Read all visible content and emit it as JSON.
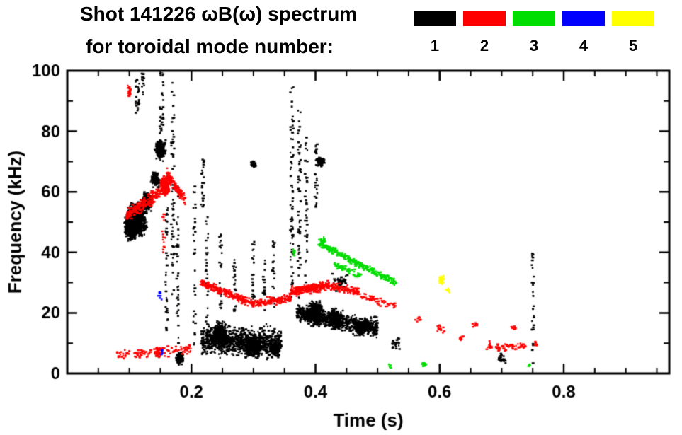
{
  "chart_data": {
    "type": "scatter",
    "title": "Shot 141226 ωB(ω) spectrum",
    "subtitle": "for toroidal mode number:",
    "xlabel": "Time (s)",
    "ylabel": "Frequency (kHz)",
    "xlim": [
      0.0,
      0.97
    ],
    "ylim": [
      0,
      100
    ],
    "xticks_major": [
      0.2,
      0.4,
      0.6,
      0.8
    ],
    "xtick_labels": [
      "0.2",
      "0.4",
      "0.6",
      "0.8"
    ],
    "yticks_major": [
      0,
      20,
      40,
      60,
      80,
      100
    ],
    "ytick_labels": [
      "0",
      "20",
      "40",
      "60",
      "80",
      "100"
    ],
    "x_minor_step": 0.05,
    "y_minor_step": 10,
    "grid": false,
    "background": "#ffffff",
    "axis_color": "#000000",
    "legend_position": "top-right",
    "legend": {
      "items": [
        {
          "label": "1",
          "color": "#000000"
        },
        {
          "label": "2",
          "color": "#ff0000"
        },
        {
          "label": "3",
          "color": "#00dd00"
        },
        {
          "label": "4",
          "color": "#0000ff"
        },
        {
          "label": "5",
          "color": "#ffff00"
        }
      ]
    },
    "series": [
      {
        "name": "1",
        "color": "#000000",
        "clusters": [
          {
            "type": "blob",
            "t": 0.112,
            "f": 51,
            "dt": 0.02,
            "df": 6.5,
            "n": 900
          },
          {
            "type": "blob",
            "t": 0.103,
            "f": 48,
            "dt": 0.012,
            "df": 4.5,
            "n": 450
          },
          {
            "type": "blob",
            "t": 0.128,
            "f": 57,
            "dt": 0.01,
            "df": 4,
            "n": 250
          },
          {
            "type": "blob",
            "t": 0.142,
            "f": 64,
            "dt": 0.008,
            "df": 3.5,
            "n": 140
          },
          {
            "type": "blob",
            "t": 0.15,
            "f": 74,
            "dt": 0.011,
            "df": 4,
            "n": 200
          },
          {
            "type": "vline",
            "t": 0.113,
            "f0": 86,
            "f1": 100,
            "dt": 0.003,
            "n": 30
          },
          {
            "type": "vline",
            "t": 0.122,
            "f0": 92,
            "f1": 100,
            "dt": 0.002,
            "n": 15
          },
          {
            "type": "vline",
            "t": 0.152,
            "f0": 78,
            "f1": 100,
            "dt": 0.003,
            "n": 35
          },
          {
            "type": "vline",
            "t": 0.16,
            "f0": 12,
            "f1": 55,
            "dt": 0.002,
            "n": 40
          },
          {
            "type": "vline",
            "t": 0.17,
            "f0": 25,
            "f1": 96,
            "dt": 0.0025,
            "n": 60
          },
          {
            "type": "vline",
            "t": 0.178,
            "f0": 3,
            "f1": 62,
            "dt": 0.002,
            "n": 45
          },
          {
            "type": "blob",
            "t": 0.182,
            "f": 5,
            "dt": 0.008,
            "df": 2.5,
            "n": 90
          },
          {
            "type": "vline",
            "t": 0.205,
            "f0": 8,
            "f1": 62,
            "dt": 0.002,
            "n": 35
          },
          {
            "type": "vline",
            "t": 0.218,
            "f0": 55,
            "f1": 73,
            "dt": 0.0025,
            "n": 25
          },
          {
            "type": "vline",
            "t": 0.225,
            "f0": 12,
            "f1": 52,
            "dt": 0.002,
            "n": 28
          },
          {
            "type": "band",
            "t0": 0.215,
            "f0": 11,
            "t1": 0.345,
            "f1": 10,
            "df": 6.5,
            "n": 900
          },
          {
            "type": "blob",
            "t": 0.245,
            "f": 13,
            "dt": 0.014,
            "df": 5,
            "n": 350
          },
          {
            "type": "blob",
            "t": 0.3,
            "f": 9,
            "dt": 0.02,
            "df": 4.5,
            "n": 350
          },
          {
            "type": "blob",
            "t": 0.335,
            "f": 8,
            "dt": 0.01,
            "df": 3.5,
            "n": 150
          },
          {
            "type": "vline",
            "t": 0.247,
            "f0": 20,
            "f1": 46,
            "dt": 0.002,
            "n": 28
          },
          {
            "type": "vline",
            "t": 0.27,
            "f0": 20,
            "f1": 41,
            "dt": 0.002,
            "n": 22
          },
          {
            "type": "vline",
            "t": 0.3,
            "f0": 22,
            "f1": 46,
            "dt": 0.002,
            "n": 26
          },
          {
            "type": "vline",
            "t": 0.317,
            "f0": 20,
            "f1": 38,
            "dt": 0.002,
            "n": 18
          },
          {
            "type": "vline",
            "t": 0.332,
            "f0": 20,
            "f1": 44,
            "dt": 0.002,
            "n": 22
          },
          {
            "type": "blob",
            "t": 0.3,
            "f": 69,
            "dt": 0.006,
            "df": 1.5,
            "n": 35
          },
          {
            "type": "vline",
            "t": 0.362,
            "f0": 25,
            "f1": 95,
            "dt": 0.0025,
            "n": 70
          },
          {
            "type": "vline",
            "t": 0.374,
            "f0": 20,
            "f1": 88,
            "dt": 0.0025,
            "n": 60
          },
          {
            "type": "vline",
            "t": 0.385,
            "f0": 28,
            "f1": 78,
            "dt": 0.002,
            "n": 40
          },
          {
            "type": "vline",
            "t": 0.401,
            "f0": 55,
            "f1": 76,
            "dt": 0.002,
            "n": 28
          },
          {
            "type": "blob",
            "t": 0.408,
            "f": 70,
            "dt": 0.009,
            "df": 2,
            "n": 90
          },
          {
            "type": "band",
            "t0": 0.37,
            "f0": 20,
            "t1": 0.5,
            "f1": 15,
            "df": 4,
            "n": 750
          },
          {
            "type": "blob",
            "t": 0.4,
            "f": 20,
            "dt": 0.014,
            "df": 5,
            "n": 350
          },
          {
            "type": "blob",
            "t": 0.43,
            "f": 18,
            "dt": 0.012,
            "df": 4,
            "n": 250
          },
          {
            "type": "blob",
            "t": 0.475,
            "f": 15,
            "dt": 0.014,
            "df": 3,
            "n": 220
          },
          {
            "type": "blob",
            "t": 0.44,
            "f": 30,
            "dt": 0.015,
            "df": 4,
            "n": 45
          },
          {
            "type": "blob",
            "t": 0.53,
            "f": 10,
            "dt": 0.01,
            "df": 3,
            "n": 20
          },
          {
            "type": "blob",
            "t": 0.7,
            "f": 5,
            "dt": 0.008,
            "df": 2.5,
            "n": 25
          },
          {
            "type": "vline",
            "t": 0.75,
            "f0": 3,
            "f1": 40,
            "dt": 0.002,
            "n": 32
          }
        ]
      },
      {
        "name": "2",
        "color": "#ff0000",
        "clusters": [
          {
            "type": "band",
            "t0": 0.095,
            "f0": 52,
            "t1": 0.15,
            "f1": 60,
            "df": 3,
            "n": 220
          },
          {
            "type": "blob",
            "t": 0.158,
            "f": 62,
            "dt": 0.01,
            "df": 4,
            "n": 220
          },
          {
            "type": "band",
            "t0": 0.16,
            "f0": 66,
            "t1": 0.19,
            "f1": 57,
            "df": 2.5,
            "n": 110
          },
          {
            "type": "vline",
            "t": 0.155,
            "f0": 40,
            "f1": 53,
            "dt": 0.002,
            "n": 15
          },
          {
            "type": "blob",
            "t": 0.1,
            "f": 93,
            "dt": 0.004,
            "df": 2.5,
            "n": 18
          },
          {
            "type": "band",
            "t0": 0.08,
            "f0": 6,
            "t1": 0.2,
            "f1": 8,
            "df": 2.2,
            "n": 110
          },
          {
            "type": "blob",
            "t": 0.145,
            "f": 7,
            "dt": 0.008,
            "df": 2,
            "n": 60
          },
          {
            "type": "band",
            "t0": 0.215,
            "f0": 30,
            "t1": 0.3,
            "f1": 23,
            "df": 1.8,
            "n": 260
          },
          {
            "type": "band",
            "t0": 0.3,
            "f0": 23,
            "t1": 0.36,
            "f1": 25,
            "df": 1.8,
            "n": 150
          },
          {
            "type": "band",
            "t0": 0.36,
            "f0": 27,
            "t1": 0.42,
            "f1": 29,
            "df": 2.2,
            "n": 260
          },
          {
            "type": "band",
            "t0": 0.42,
            "f0": 29,
            "t1": 0.47,
            "f1": 27,
            "df": 1.8,
            "n": 120
          },
          {
            "type": "band",
            "t0": 0.47,
            "f0": 26,
            "t1": 0.53,
            "f1": 22,
            "df": 1.8,
            "n": 55
          },
          {
            "type": "blob",
            "t": 0.565,
            "f": 18,
            "dt": 0.006,
            "df": 1.5,
            "n": 10
          },
          {
            "type": "blob",
            "t": 0.6,
            "f": 15,
            "dt": 0.008,
            "df": 2,
            "n": 14
          },
          {
            "type": "blob",
            "t": 0.635,
            "f": 12,
            "dt": 0.006,
            "df": 1.5,
            "n": 10
          },
          {
            "type": "blob",
            "t": 0.657,
            "f": 16,
            "dt": 0.005,
            "df": 1.5,
            "n": 8
          },
          {
            "type": "blob",
            "t": 0.68,
            "f": 9,
            "dt": 0.008,
            "df": 2,
            "n": 12
          },
          {
            "type": "band",
            "t0": 0.69,
            "f0": 9,
            "t1": 0.74,
            "f1": 9,
            "df": 2,
            "n": 60
          },
          {
            "type": "blob",
            "t": 0.72,
            "f": 15,
            "dt": 0.005,
            "df": 1.5,
            "n": 10
          },
          {
            "type": "blob",
            "t": 0.755,
            "f": 10,
            "dt": 0.004,
            "df": 1.5,
            "n": 8
          }
        ]
      },
      {
        "name": "3",
        "color": "#00dd00",
        "clusters": [
          {
            "type": "band",
            "t0": 0.405,
            "f0": 43,
            "t1": 0.53,
            "f1": 30,
            "df": 1.6,
            "n": 280
          },
          {
            "type": "band",
            "t0": 0.43,
            "f0": 36,
            "t1": 0.475,
            "f1": 32,
            "df": 1.4,
            "n": 60
          },
          {
            "type": "blob",
            "t": 0.412,
            "f": 44,
            "dt": 0.005,
            "df": 1.5,
            "n": 20
          },
          {
            "type": "blob",
            "t": 0.365,
            "f": 40,
            "dt": 0.004,
            "df": 1.5,
            "n": 10
          },
          {
            "type": "blob",
            "t": 0.575,
            "f": 3,
            "dt": 0.006,
            "df": 1.2,
            "n": 14
          },
          {
            "type": "blob",
            "t": 0.52,
            "f": 2.5,
            "dt": 0.003,
            "df": 1,
            "n": 6
          },
          {
            "type": "blob",
            "t": 0.745,
            "f": 2.5,
            "dt": 0.003,
            "df": 1,
            "n": 6
          }
        ]
      },
      {
        "name": "4",
        "color": "#0000ff",
        "clusters": [
          {
            "type": "blob",
            "t": 0.149,
            "f": 26,
            "dt": 0.004,
            "df": 2,
            "n": 8
          },
          {
            "type": "blob",
            "t": 0.153,
            "f": 7,
            "dt": 0.003,
            "df": 1.5,
            "n": 5
          }
        ]
      },
      {
        "name": "5",
        "color": "#ffff00",
        "clusters": [
          {
            "type": "blob",
            "t": 0.603,
            "f": 31,
            "dt": 0.006,
            "df": 2.2,
            "n": 24
          },
          {
            "type": "blob",
            "t": 0.613,
            "f": 28,
            "dt": 0.004,
            "df": 1.5,
            "n": 12
          }
        ]
      }
    ]
  }
}
